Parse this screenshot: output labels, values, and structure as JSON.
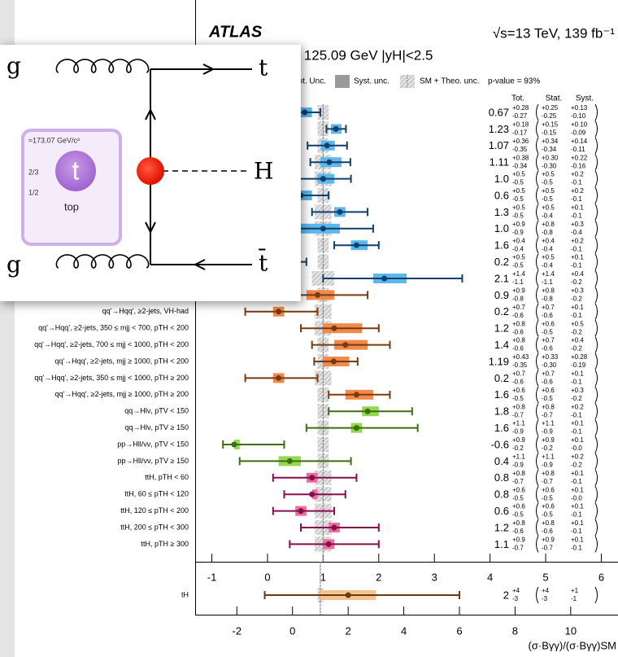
{
  "chart_data": [
    {
      "type": "forest",
      "title": "ATLAS",
      "lumi": "√s=13 TeV, 139 fb⁻¹",
      "subtitle": "mH = 125.09 GeV  |yH|<2.5",
      "legend": [
        "Tot. Unc.",
        "Syst. unc.",
        "SM + Theo. unc."
      ],
      "p_value": "p-value = 93%",
      "column_headers": [
        "Tot.",
        "Stat.",
        "Syst."
      ],
      "xlim": [
        -1.3,
        6.3
      ],
      "xticks": [
        -1,
        0,
        1,
        2,
        3,
        4,
        5,
        6
      ],
      "sm_value": 1,
      "series": [
        {
          "color": "#123f6e",
          "band_color": "#5bb8ea",
          "labels": [
            null,
            null,
            null,
            null,
            null,
            null,
            null,
            null,
            null,
            null,
            null
          ],
          "values": [
            0.67,
            1.23,
            1.07,
            1.11,
            1.0,
            0.6,
            1.3,
            1.0,
            1.6,
            0.2,
            2.1
          ],
          "value_labels": [
            "0.67",
            "1.23",
            "1.07",
            "1.11",
            "1.0",
            "0.6",
            "1.3",
            "1.0",
            "1.6",
            "0.2",
            "2.1"
          ],
          "tot_up": [
            0.28,
            0.18,
            0.36,
            0.38,
            0.5,
            0.5,
            0.5,
            0.9,
            0.4,
            0.5,
            1.4
          ],
          "tot_up_labels": [
            "+0.28",
            "+0.18",
            "+0.36",
            "+0.38",
            "+0.5",
            "+0.5",
            "+0.5",
            "+0.9",
            "+0.4",
            "+0.5",
            "+1.4"
          ],
          "tot_down": [
            -0.27,
            -0.17,
            -0.35,
            -0.34,
            -0.5,
            -0.5,
            -0.5,
            -0.9,
            -0.4,
            -0.5,
            -1.1
          ],
          "tot_down_labels": [
            "-0.27",
            "-0.17",
            "-0.35",
            "-0.34",
            "-0.5",
            "-0.5",
            "-0.5",
            "-0.9",
            "-0.4",
            "-0.5",
            "-1.1"
          ],
          "stat_up": [
            0.25,
            0.15,
            0.34,
            0.3,
            0.5,
            0.5,
            0.5,
            0.8,
            0.4,
            0.5,
            1.4
          ],
          "stat_up_labels": [
            "+0.25",
            "+0.15",
            "+0.34",
            "+0.30",
            "+0.5",
            "+0.5",
            "+0.5",
            "+0.8",
            "+0.4",
            "+0.5",
            "+1.4"
          ],
          "stat_down": [
            -0.25,
            -0.15,
            -0.34,
            -0.3,
            -0.5,
            -0.5,
            -0.4,
            -0.8,
            -0.4,
            -0.4,
            -1.1
          ],
          "stat_down_labels": [
            "-0.25",
            "-0.15",
            "-0.34",
            "-0.30",
            "-0.5",
            "-0.5",
            "-0.4",
            "-0.8",
            "-0.4",
            "-0.4",
            "-1.1"
          ],
          "syst_up": [
            0.13,
            0.1,
            0.14,
            0.22,
            0.2,
            0.2,
            0.1,
            0.3,
            0.2,
            0.1,
            0.4
          ],
          "syst_up_labels": [
            "+0.13",
            "+0.10",
            "+0.14",
            "+0.22",
            "+0.2",
            "+0.2",
            "+0.1",
            "+0.3",
            "+0.2",
            "+0.1",
            "+0.4"
          ],
          "syst_down": [
            -0.1,
            -0.09,
            -0.11,
            -0.16,
            -0.1,
            -0.1,
            -0.1,
            -0.4,
            -0.1,
            -0.1,
            -0.2
          ],
          "syst_down_labels": [
            "-0.10",
            "-0.09",
            "-0.11",
            "-0.16",
            "-0.1",
            "-0.1",
            "-0.1",
            "-0.4",
            "-0.1",
            "-0.1",
            "-0.2"
          ],
          "theo_unc": [
            0.1,
            0.1,
            0.1,
            0.15,
            0.15,
            0.1,
            0.15,
            0.15,
            0.1,
            0.1,
            0.2
          ]
        },
        {
          "color": "#7a3a10",
          "band_color": "#f0894a",
          "labels": [
            null,
            "qq'→Hqq', ≥2-jets, VH-had",
            "qq'→Hqq', ≥2-jets, 350 ≤ mjj < 700, pTH < 200",
            "qq'→Hqq', ≥2-jets, 700 ≤ mjj < 1000, pTH < 200",
            "qq'→Hqq', ≥2-jets, mjj ≥ 1000, pTH < 200",
            "qq'→Hqq', ≥2-jets, 350 ≤ mjj < 1000, pTH ≥ 200",
            "qq'→Hqq', ≥2-jets, mjj ≥ 1000, pTH ≥ 200"
          ],
          "values": [
            0.9,
            0.2,
            1.2,
            1.4,
            1.19,
            0.2,
            1.6
          ],
          "value_labels": [
            "0.9",
            "0.2",
            "1.2",
            "1.4",
            "1.19",
            "0.2",
            "1.6"
          ],
          "tot_up": [
            0.9,
            0.7,
            0.8,
            0.8,
            0.43,
            0.7,
            0.6
          ],
          "tot_up_labels": [
            "+0.9",
            "+0.7",
            "+0.8",
            "+0.8",
            "+0.43",
            "+0.7",
            "+0.6"
          ],
          "tot_down": [
            -0.8,
            -0.6,
            -0.6,
            -0.6,
            -0.35,
            -0.6,
            -0.5
          ],
          "tot_down_labels": [
            "-0.8",
            "-0.6",
            "-0.6",
            "-0.6",
            "-0.35",
            "-0.6",
            "-0.5"
          ],
          "stat_up": [
            0.8,
            0.7,
            0.6,
            0.7,
            0.33,
            0.7,
            0.6
          ],
          "stat_up_labels": [
            "+0.8",
            "+0.7",
            "+0.6",
            "+0.7",
            "+0.33",
            "+0.7",
            "+0.6"
          ],
          "stat_down": [
            -0.8,
            -0.6,
            -0.5,
            -0.6,
            -0.3,
            -0.6,
            -0.5
          ],
          "stat_down_labels": [
            "-0.8",
            "-0.6",
            "-0.5",
            "-0.6",
            "-0.30",
            "-0.6",
            "-0.5"
          ],
          "syst_up": [
            0.3,
            0.1,
            0.5,
            0.4,
            0.28,
            0.1,
            0.3
          ],
          "syst_up_labels": [
            "+0.3",
            "+0.1",
            "+0.5",
            "+0.4",
            "+0.28",
            "+0.1",
            "+0.3"
          ],
          "syst_down": [
            -0.2,
            -0.1,
            -0.2,
            -0.2,
            -0.19,
            -0.1,
            -0.2
          ],
          "syst_down_labels": [
            "-0.2",
            "-0.1",
            "-0.2",
            "-0.2",
            "-0.19",
            "-0.1",
            "-0.2"
          ],
          "theo_unc": [
            0.1,
            0.15,
            0.15,
            0.1,
            0.1,
            0.15,
            0.1
          ]
        },
        {
          "color": "#3f6e12",
          "band_color": "#92d850",
          "labels": [
            "qq→Hlν, pTV < 150",
            "qq→Hlν, pTV ≥ 150",
            "pp→Hll/νν, pTV < 150",
            "pp→Hll/νν, pTV ≥ 150"
          ],
          "values": [
            1.8,
            1.6,
            -0.6,
            0.4
          ],
          "value_labels": [
            "1.8",
            "1.6",
            "-0.6",
            "0.4"
          ],
          "tot_up": [
            0.8,
            1.1,
            0.9,
            1.1
          ],
          "tot_up_labels": [
            "+0.8",
            "+1.1",
            "+0.9",
            "+1.1"
          ],
          "tot_down": [
            -0.7,
            -0.9,
            -0.2,
            -0.9
          ],
          "tot_down_labels": [
            "-0.7",
            "-0.9",
            "-0.2",
            "-0.9"
          ],
          "stat_up": [
            0.8,
            1.1,
            0.9,
            1.1
          ],
          "stat_up_labels": [
            "+0.8",
            "+1.1",
            "+0.9",
            "+1.1"
          ],
          "stat_down": [
            -0.7,
            -0.9,
            -0.2,
            -0.9
          ],
          "stat_down_labels": [
            "-0.7",
            "-0.9",
            "-0.2",
            "-0.9"
          ],
          "syst_up": [
            0.2,
            0.1,
            0.1,
            0.2
          ],
          "syst_up_labels": [
            "+0.2",
            "+0.1",
            "+0.1",
            "+0.2"
          ],
          "syst_down": [
            -0.1,
            -0.1,
            0,
            -0.2
          ],
          "syst_down_labels": [
            "-0.1",
            "-0.1",
            "-0.0",
            "-0.2"
          ],
          "theo_unc": [
            0.1,
            0.1,
            0.1,
            0.1
          ]
        },
        {
          "color": "#8a0d4b",
          "band_color": "#ec6d9e",
          "labels": [
            "ttH, pTH < 60",
            "ttH, 60 ≤ pTH < 120",
            "ttH, 120 ≤ pTH < 200",
            "ttH, 200 ≤ pTH < 300",
            "ttH, pTH ≥ 300"
          ],
          "values": [
            0.8,
            0.8,
            0.6,
            1.2,
            1.1
          ],
          "value_labels": [
            "0.8",
            "0.8",
            "0.6",
            "1.2",
            "1.1"
          ],
          "tot_up": [
            0.8,
            0.6,
            0.6,
            0.8,
            0.9
          ],
          "tot_up_labels": [
            "+0.8",
            "+0.6",
            "+0.6",
            "+0.8",
            "+0.9"
          ],
          "tot_down": [
            -0.7,
            -0.5,
            -0.5,
            -0.6,
            -0.7
          ],
          "tot_down_labels": [
            "-0.7",
            "-0.5",
            "-0.5",
            "-0.6",
            "-0.7"
          ],
          "stat_up": [
            0.8,
            0.6,
            0.6,
            0.8,
            0.9
          ],
          "stat_up_labels": [
            "+0.8",
            "+0.6",
            "+0.6",
            "+0.8",
            "+0.9"
          ],
          "stat_down": [
            -0.7,
            -0.5,
            -0.5,
            -0.6,
            -0.7
          ],
          "stat_down_labels": [
            "-0.7",
            "-0.5",
            "-0.5",
            "-0.6",
            "-0.7"
          ],
          "syst_up": [
            0.1,
            0.1,
            0.1,
            0.1,
            0.1
          ],
          "syst_up_labels": [
            "+0.1",
            "+0.1",
            "+0.1",
            "+0.1",
            "+0.1"
          ],
          "syst_down": [
            -0.1,
            0,
            -0.1,
            -0.1,
            -0.1
          ],
          "syst_down_labels": [
            "-0.1",
            "-0.0",
            "-0.1",
            "-0.1",
            "-0.1"
          ],
          "theo_unc": [
            0.15,
            0.15,
            0.15,
            0.15,
            0.15
          ]
        }
      ]
    },
    {
      "type": "forest",
      "x_label": "(σ·Bγγ)/(σ·Bγγ)SM",
      "xlim": [
        -3.5,
        11.7
      ],
      "xticks": [
        -2,
        0,
        2,
        4,
        6,
        8,
        10
      ],
      "sm_value": 1,
      "series": [
        {
          "color": "#6b3a12",
          "band_color": "#f6c38e",
          "labels": [
            "tH"
          ],
          "values": [
            2
          ],
          "value_labels": [
            "2"
          ],
          "tot_up": [
            4
          ],
          "tot_up_labels": [
            "+4"
          ],
          "tot_down": [
            -3
          ],
          "tot_down_labels": [
            "-3"
          ],
          "stat_up": [
            4
          ],
          "stat_up_labels": [
            "+4"
          ],
          "stat_down": [
            -3
          ],
          "stat_down_labels": [
            "-3"
          ],
          "syst_up": [
            1
          ],
          "syst_up_labels": [
            "+1"
          ],
          "syst_down": [
            -1
          ],
          "syst_down_labels": [
            "-1"
          ],
          "theo_unc": [
            0.1
          ]
        }
      ]
    }
  ],
  "overlay": {
    "labels": [
      "g",
      "g",
      "t",
      "H",
      "t̄"
    ],
    "card": {
      "mass": "≈173.07 GeV/c²",
      "charge": "2/3",
      "spin": "1/2",
      "symbol": "t",
      "name": "top"
    }
  }
}
